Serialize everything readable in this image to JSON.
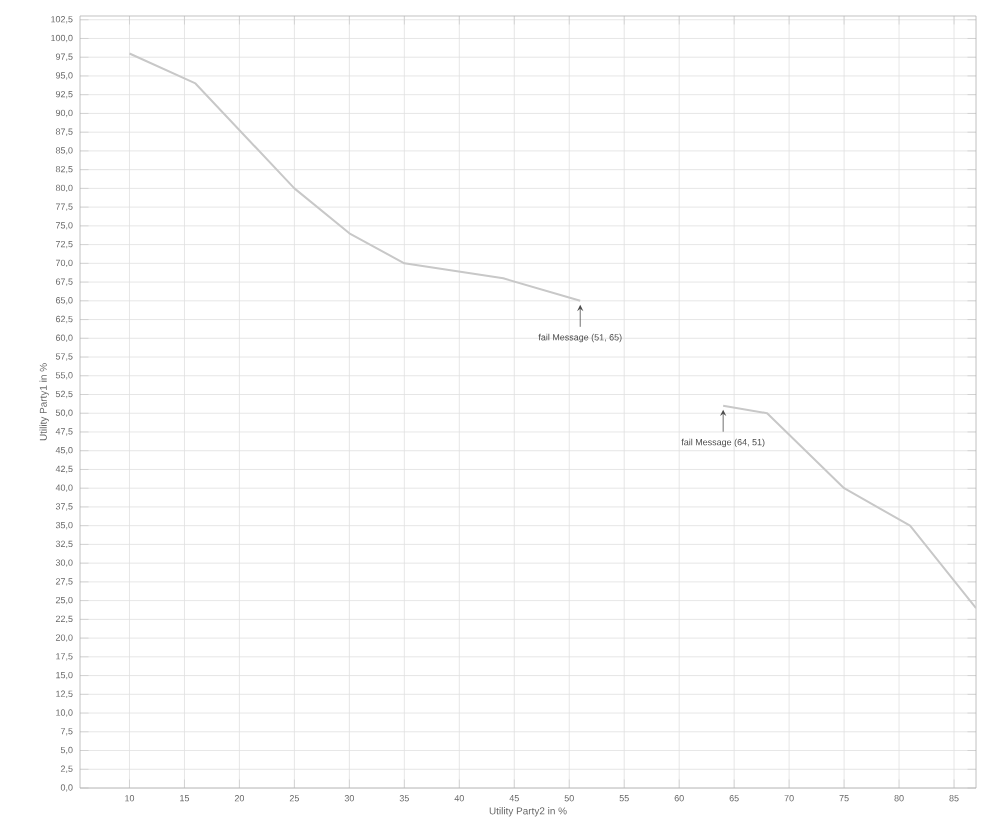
{
  "chart_data": {
    "type": "line",
    "xlabel": "Utility Party2 in %",
    "ylabel": "Utility Party1 in %",
    "x": [
      10,
      16,
      25,
      30,
      35,
      44,
      51,
      null,
      64,
      68,
      75,
      81,
      87
    ],
    "series": [
      {
        "color": "#c8c8c8",
        "values": [
          98,
          94,
          80,
          74,
          70,
          68,
          65,
          null,
          51,
          50,
          40,
          35,
          24
        ]
      }
    ],
    "xlim": [
      5.5,
      87
    ],
    "ylim": [
      0,
      103
    ],
    "xticks": [
      10,
      15,
      20,
      25,
      30,
      35,
      40,
      45,
      50,
      55,
      60,
      65,
      70,
      75,
      80,
      85
    ],
    "yticks": [
      {
        "value": 0,
        "label": "0,0"
      },
      {
        "value": 2.5,
        "label": "2,5"
      },
      {
        "value": 5,
        "label": "5,0"
      },
      {
        "value": 7.5,
        "label": "7,5"
      },
      {
        "value": 10,
        "label": "10,0"
      },
      {
        "value": 12.5,
        "label": "12,5"
      },
      {
        "value": 15,
        "label": "15,0"
      },
      {
        "value": 17.5,
        "label": "17,5"
      },
      {
        "value": 20,
        "label": "20,0"
      },
      {
        "value": 22.5,
        "label": "22,5"
      },
      {
        "value": 25,
        "label": "25,0"
      },
      {
        "value": 27.5,
        "label": "27,5"
      },
      {
        "value": 30,
        "label": "30,0"
      },
      {
        "value": 32.5,
        "label": "32,5"
      },
      {
        "value": 35,
        "label": "35,0"
      },
      {
        "value": 37.5,
        "label": "37,5"
      },
      {
        "value": 40,
        "label": "40,0"
      },
      {
        "value": 42.5,
        "label": "42,5"
      },
      {
        "value": 45,
        "label": "45,0"
      },
      {
        "value": 47.5,
        "label": "47,5"
      },
      {
        "value": 50,
        "label": "50,0"
      },
      {
        "value": 52.5,
        "label": "52,5"
      },
      {
        "value": 55,
        "label": "55,0"
      },
      {
        "value": 57.5,
        "label": "57,5"
      },
      {
        "value": 60,
        "label": "60,0"
      },
      {
        "value": 62.5,
        "label": "62,5"
      },
      {
        "value": 65,
        "label": "65,0"
      },
      {
        "value": 67.5,
        "label": "67,5"
      },
      {
        "value": 70,
        "label": "70,0"
      },
      {
        "value": 72.5,
        "label": "72,5"
      },
      {
        "value": 75,
        "label": "75,0"
      },
      {
        "value": 77.5,
        "label": "77,5"
      },
      {
        "value": 80,
        "label": "80,0"
      },
      {
        "value": 82.5,
        "label": "82,5"
      },
      {
        "value": 85,
        "label": "85,0"
      },
      {
        "value": 87.5,
        "label": "87,5"
      },
      {
        "value": 90,
        "label": "90,0"
      },
      {
        "value": 92.5,
        "label": "92,5"
      },
      {
        "value": 95,
        "label": "95,0"
      },
      {
        "value": 97.5,
        "label": "97,5"
      },
      {
        "value": 100,
        "label": "100,0"
      },
      {
        "value": 102.5,
        "label": "102,5"
      }
    ],
    "grid": true,
    "marker": "none",
    "line_style": "solid",
    "annotations": [
      {
        "text": "fail Message (51, 65)",
        "x": 51,
        "y": 65
      },
      {
        "text": "fail Message (64, 51)",
        "x": 64,
        "y": 51
      }
    ]
  }
}
